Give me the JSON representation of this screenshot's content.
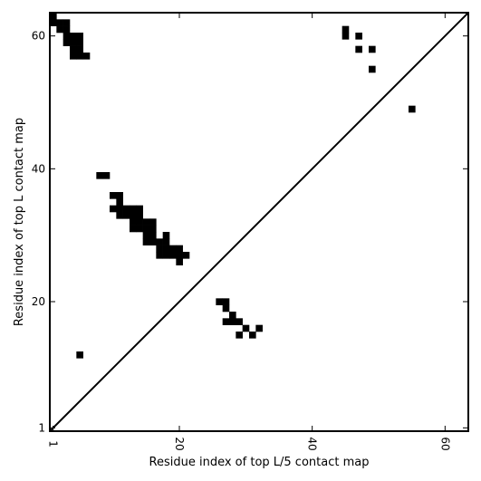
{
  "chart_data": {
    "type": "heatmap",
    "title": "",
    "xlabel": "Residue index of top L/5 contact map",
    "ylabel": "Residue index of top L contact map",
    "xlim": [
      0.5,
      63.5
    ],
    "ylim": [
      0.5,
      63.5
    ],
    "x_ticks": [
      1,
      20,
      40,
      60
    ],
    "y_ticks": [
      1,
      20,
      40,
      60
    ],
    "diagonal_line": true,
    "grid": false,
    "legend": "none",
    "cell_color": "#000000",
    "upper_triangle_contacts": [
      [
        45,
        61
      ],
      [
        45,
        60
      ],
      [
        47,
        60
      ],
      [
        47,
        58
      ],
      [
        49,
        58
      ],
      [
        49,
        55
      ],
      [
        55,
        49
      ]
    ],
    "lower_triangle_contacts": [
      [
        1,
        63
      ],
      [
        1,
        62
      ],
      [
        2,
        62
      ],
      [
        3,
        62
      ],
      [
        2,
        61
      ],
      [
        3,
        61
      ],
      [
        3,
        60
      ],
      [
        4,
        60
      ],
      [
        5,
        60
      ],
      [
        3,
        59
      ],
      [
        4,
        59
      ],
      [
        5,
        59
      ],
      [
        4,
        58
      ],
      [
        5,
        58
      ],
      [
        4,
        57
      ],
      [
        5,
        57
      ],
      [
        6,
        57
      ],
      [
        8,
        39
      ],
      [
        9,
        39
      ],
      [
        10,
        36
      ],
      [
        11,
        36
      ],
      [
        11,
        35
      ],
      [
        10,
        34
      ],
      [
        11,
        34
      ],
      [
        12,
        34
      ],
      [
        13,
        34
      ],
      [
        14,
        34
      ],
      [
        11,
        33
      ],
      [
        12,
        33
      ],
      [
        13,
        33
      ],
      [
        14,
        33
      ],
      [
        13,
        32
      ],
      [
        14,
        32
      ],
      [
        15,
        32
      ],
      [
        16,
        32
      ],
      [
        13,
        31
      ],
      [
        14,
        31
      ],
      [
        15,
        31
      ],
      [
        16,
        31
      ],
      [
        15,
        30
      ],
      [
        16,
        30
      ],
      [
        18,
        30
      ],
      [
        15,
        29
      ],
      [
        16,
        29
      ],
      [
        17,
        29
      ],
      [
        18,
        29
      ],
      [
        17,
        28
      ],
      [
        18,
        28
      ],
      [
        19,
        28
      ],
      [
        20,
        28
      ],
      [
        17,
        27
      ],
      [
        18,
        27
      ],
      [
        19,
        27
      ],
      [
        20,
        27
      ],
      [
        21,
        27
      ],
      [
        20,
        26
      ],
      [
        26,
        20
      ],
      [
        27,
        20
      ],
      [
        27,
        19
      ],
      [
        28,
        18
      ],
      [
        27,
        17
      ],
      [
        28,
        17
      ],
      [
        29,
        17
      ],
      [
        30,
        16
      ],
      [
        32,
        16
      ],
      [
        29,
        15
      ],
      [
        31,
        15
      ],
      [
        5,
        12
      ]
    ]
  }
}
